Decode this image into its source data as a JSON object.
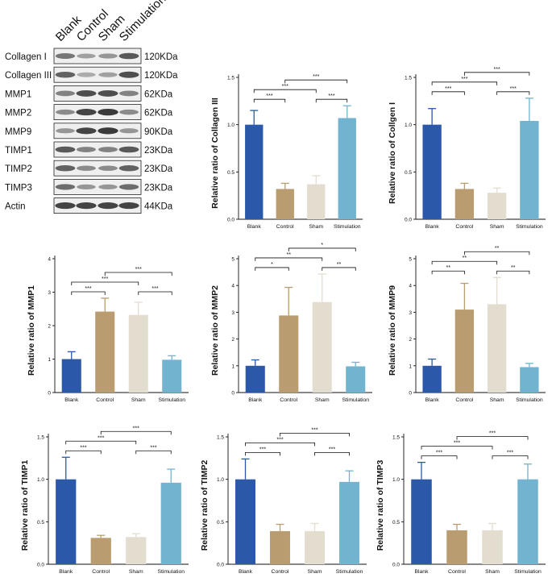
{
  "blot": {
    "lanes": [
      "Blank",
      "Control",
      "Sham",
      "Stimulation"
    ],
    "rows": [
      {
        "protein": "Collagen I",
        "size": "120KDa",
        "intensity": [
          0.55,
          0.35,
          0.4,
          0.7
        ]
      },
      {
        "protein": "Collagen III",
        "size": "120KDa",
        "intensity": [
          0.65,
          0.3,
          0.35,
          0.75
        ]
      },
      {
        "protein": "MMP1",
        "size": "62KDa",
        "intensity": [
          0.5,
          0.75,
          0.75,
          0.5
        ]
      },
      {
        "protein": "MMP2",
        "size": "62KDa",
        "intensity": [
          0.45,
          0.8,
          0.85,
          0.45
        ]
      },
      {
        "protein": "MMP9",
        "size": "90KDa",
        "intensity": [
          0.4,
          0.8,
          0.85,
          0.4
        ]
      },
      {
        "protein": "TIMP1",
        "size": "23KDa",
        "intensity": [
          0.7,
          0.5,
          0.5,
          0.7
        ]
      },
      {
        "protein": "TIMP2",
        "size": "23KDa",
        "intensity": [
          0.65,
          0.45,
          0.45,
          0.65
        ]
      },
      {
        "protein": "TIMP3",
        "size": "23KDa",
        "intensity": [
          0.6,
          0.4,
          0.4,
          0.6
        ]
      },
      {
        "protein": "Actin",
        "size": "44KDa",
        "intensity": [
          0.8,
          0.8,
          0.8,
          0.8
        ]
      }
    ]
  },
  "colors": {
    "Blank": "#2b58a8",
    "Control": "#b99c6f",
    "Sham": "#e3ddcf",
    "Stimulation": "#72b4cf"
  },
  "chart_data": [
    {
      "type": "bar",
      "ylabel": "Relative ratio of Collagen III",
      "categories": [
        "Blank",
        "Control",
        "Sham",
        "Stimulation"
      ],
      "values": [
        1.0,
        0.32,
        0.37,
        1.07
      ],
      "errors": [
        0.15,
        0.06,
        0.09,
        0.13
      ],
      "ylim": [
        0,
        1.5
      ],
      "yticks": [
        "0.0",
        "0.5",
        "1.0",
        "1.5"
      ],
      "tick_values": [
        0,
        0.5,
        1.0,
        1.5
      ],
      "significance": [
        {
          "pair": [
            0,
            1
          ],
          "label": "***"
        },
        {
          "pair": [
            2,
            3
          ],
          "label": "***"
        },
        {
          "pair": [
            0,
            2
          ],
          "label": "***"
        },
        {
          "pair": [
            1,
            3
          ],
          "label": "***"
        }
      ]
    },
    {
      "type": "bar",
      "ylabel": "Relative ratio of Collgen I",
      "categories": [
        "Blank",
        "Control",
        "Sham",
        "Stimulation"
      ],
      "values": [
        1.0,
        0.32,
        0.28,
        1.04
      ],
      "errors": [
        0.17,
        0.06,
        0.05,
        0.24
      ],
      "ylim": [
        0,
        1.5
      ],
      "yticks": [
        "0.0",
        "0.5",
        "1.0",
        "1.5"
      ],
      "tick_values": [
        0,
        0.5,
        1.0,
        1.5
      ],
      "significance": [
        {
          "pair": [
            0,
            1
          ],
          "label": "***"
        },
        {
          "pair": [
            2,
            3
          ],
          "label": "***"
        },
        {
          "pair": [
            0,
            2
          ],
          "label": "***"
        },
        {
          "pair": [
            1,
            3
          ],
          "label": "***"
        }
      ]
    },
    {
      "type": "bar",
      "ylabel": "Relative ratio of MMP1",
      "categories": [
        "Blank",
        "Control",
        "Sham",
        "Stimulation"
      ],
      "values": [
        1.0,
        2.42,
        2.32,
        0.98
      ],
      "errors": [
        0.22,
        0.4,
        0.38,
        0.12
      ],
      "ylim": [
        0,
        4
      ],
      "yticks": [
        "0",
        "1",
        "2",
        "3",
        "4"
      ],
      "tick_values": [
        0,
        1,
        2,
        3,
        4
      ],
      "significance": [
        {
          "pair": [
            0,
            1
          ],
          "label": "***"
        },
        {
          "pair": [
            2,
            3
          ],
          "label": "***"
        },
        {
          "pair": [
            0,
            2
          ],
          "label": "***"
        },
        {
          "pair": [
            1,
            3
          ],
          "label": "***"
        }
      ]
    },
    {
      "type": "bar",
      "ylabel": "Relative ratio of MMP2",
      "categories": [
        "Blank",
        "Control",
        "Sham",
        "Stimulation"
      ],
      "values": [
        1.0,
        2.88,
        3.38,
        0.98
      ],
      "errors": [
        0.22,
        1.05,
        1.05,
        0.15
      ],
      "ylim": [
        0,
        5
      ],
      "yticks": [
        "0",
        "1",
        "2",
        "3",
        "4",
        "5"
      ],
      "tick_values": [
        0,
        1,
        2,
        3,
        4,
        5
      ],
      "significance": [
        {
          "pair": [
            0,
            1
          ],
          "label": "*"
        },
        {
          "pair": [
            2,
            3
          ],
          "label": "**"
        },
        {
          "pair": [
            0,
            2
          ],
          "label": "**"
        },
        {
          "pair": [
            1,
            3
          ],
          "label": "*"
        }
      ]
    },
    {
      "type": "bar",
      "ylabel": "Relative ratio of MMP9",
      "categories": [
        "Blank",
        "Control",
        "Sham",
        "Stimulation"
      ],
      "values": [
        1.0,
        3.1,
        3.3,
        0.95
      ],
      "errors": [
        0.25,
        0.98,
        1.0,
        0.14
      ],
      "ylim": [
        0,
        5
      ],
      "yticks": [
        "0",
        "1",
        "2",
        "3",
        "4",
        "5"
      ],
      "tick_values": [
        0,
        1,
        2,
        3,
        4,
        5
      ],
      "significance": [
        {
          "pair": [
            0,
            1
          ],
          "label": "**"
        },
        {
          "pair": [
            2,
            3
          ],
          "label": "**"
        },
        {
          "pair": [
            0,
            2
          ],
          "label": "**"
        },
        {
          "pair": [
            1,
            3
          ],
          "label": "**"
        }
      ]
    },
    {
      "type": "bar",
      "ylabel": "Relative ratio of TIMP1",
      "categories": [
        "Blank",
        "Control",
        "Sham",
        "Stimulation"
      ],
      "values": [
        1.0,
        0.31,
        0.32,
        0.96
      ],
      "errors": [
        0.26,
        0.03,
        0.04,
        0.16
      ],
      "ylim": [
        0,
        1.5
      ],
      "yticks": [
        "0.0",
        "0.5",
        "1.0",
        "1.5"
      ],
      "tick_values": [
        0,
        0.5,
        1.0,
        1.5
      ],
      "significance": [
        {
          "pair": [
            0,
            1
          ],
          "label": "***"
        },
        {
          "pair": [
            2,
            3
          ],
          "label": "***"
        },
        {
          "pair": [
            0,
            2
          ],
          "label": "***"
        },
        {
          "pair": [
            1,
            3
          ],
          "label": "***"
        }
      ]
    },
    {
      "type": "bar",
      "ylabel": "Relative ratio of TIMP2",
      "categories": [
        "Blank",
        "Control",
        "Sham",
        "Stimulation"
      ],
      "values": [
        1.0,
        0.39,
        0.39,
        0.97
      ],
      "errors": [
        0.24,
        0.08,
        0.09,
        0.13
      ],
      "ylim": [
        0,
        1.5
      ],
      "yticks": [
        "0.0",
        "0.5",
        "1.0",
        "1.5"
      ],
      "tick_values": [
        0,
        0.5,
        1.0,
        1.5
      ],
      "significance": [
        {
          "pair": [
            0,
            1
          ],
          "label": "***"
        },
        {
          "pair": [
            2,
            3
          ],
          "label": "***"
        },
        {
          "pair": [
            0,
            2
          ],
          "label": "***"
        },
        {
          "pair": [
            1,
            3
          ],
          "label": "***"
        }
      ]
    },
    {
      "type": "bar",
      "ylabel": "Relative ratio of TIMP3",
      "categories": [
        "Blank",
        "Control",
        "Sham",
        "Stimulation"
      ],
      "values": [
        1.0,
        0.4,
        0.4,
        1.0
      ],
      "errors": [
        0.2,
        0.07,
        0.08,
        0.18
      ],
      "ylim": [
        0,
        1.5
      ],
      "yticks": [
        "0.0",
        "0.5",
        "1.0",
        "1.5"
      ],
      "tick_values": [
        0,
        0.5,
        1.0,
        1.5
      ],
      "significance": [
        {
          "pair": [
            0,
            1
          ],
          "label": "***"
        },
        {
          "pair": [
            2,
            3
          ],
          "label": "***"
        },
        {
          "pair": [
            0,
            2
          ],
          "label": "***"
        },
        {
          "pair": [
            1,
            3
          ],
          "label": "***"
        }
      ]
    }
  ]
}
